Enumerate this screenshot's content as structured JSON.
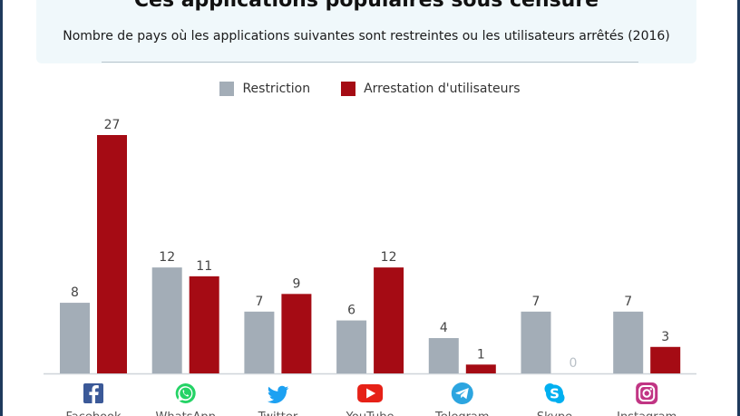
{
  "header": {
    "title": "Ces applications populaires sous censure",
    "subtitle": "Nombre de pays où les applications suivantes sont restreintes ou les utilisateurs arrêtés (2016)"
  },
  "colors": {
    "restriction": "#a3adb7",
    "arrestation": "#a50b14",
    "label": "#444444",
    "axis": "#cfd5da",
    "zero_label": "#b9c0c7"
  },
  "chart_data": {
    "type": "bar",
    "title": "Ces applications populaires sous censure",
    "subtitle": "Nombre de pays où les applications suivantes sont restreintes ou les utilisateurs arrêtés (2016)",
    "categories": [
      "Facebook",
      "WhatsApp",
      "Twitter",
      "YouTube",
      "Telegram",
      "Skype",
      "Instagram"
    ],
    "icons": [
      "facebook-icon",
      "whatsapp-icon",
      "twitter-icon",
      "youtube-icon",
      "telegram-icon",
      "skype-icon",
      "instagram-icon"
    ],
    "series": [
      {
        "name": "Restriction",
        "color": "#a3adb7",
        "values": [
          8,
          12,
          7,
          6,
          4,
          7,
          7
        ]
      },
      {
        "name": "Arrestation d'utilisateurs",
        "color": "#a50b14",
        "values": [
          27,
          11,
          9,
          12,
          1,
          0,
          3
        ]
      }
    ],
    "ylim": [
      0,
      27
    ],
    "xlabel": "",
    "ylabel": "",
    "legend": "top-center",
    "grid": false
  }
}
